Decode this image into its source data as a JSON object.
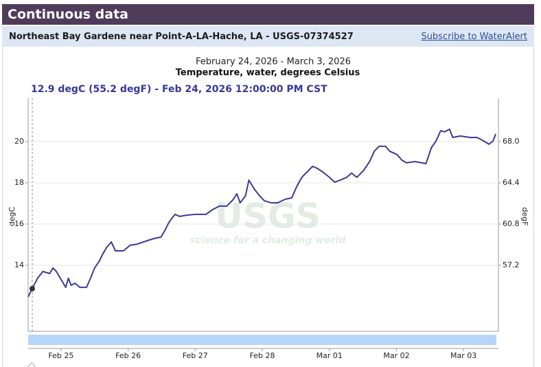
{
  "header": {
    "title": "Continuous data"
  },
  "station": {
    "name": "Northeast Bay Gardene near Point-A-LA-Hache, LA - USGS-07374527",
    "link": "Subscribe to WaterAlert"
  },
  "chart_data": {
    "type": "line",
    "subtitle": "February 24, 2026 - March 3, 2026",
    "title": "Temperature, water, degrees Celsius",
    "tooltip": "12.9 degC (55.2 degF) - Feb 24, 2026 12:00:00 PM CST",
    "watermark": {
      "logo": "USGS",
      "tagline": "science for a changing world"
    },
    "ylabel": "degC",
    "y2label": "degF",
    "x": [
      0.51,
      0.57,
      0.65,
      0.73,
      0.83,
      0.88,
      0.93,
      0.99,
      1.07,
      1.11,
      1.15,
      1.21,
      1.28,
      1.38,
      1.44,
      1.5,
      1.57,
      1.62,
      1.68,
      1.75,
      1.81,
      1.93,
      2.03,
      2.14,
      2.29,
      2.39,
      2.49,
      2.55,
      2.6,
      2.65,
      2.7,
      2.77,
      2.87,
      3.01,
      3.16,
      3.26,
      3.36,
      3.47,
      3.57,
      3.62,
      3.67,
      3.75,
      3.8,
      3.88,
      3.96,
      4.03,
      4.13,
      4.23,
      4.34,
      4.44,
      4.51,
      4.59,
      4.67,
      4.75,
      4.82,
      4.9,
      5.0,
      5.08,
      5.16,
      5.26,
      5.33,
      5.41,
      5.51,
      5.6,
      5.67,
      5.74,
      5.84,
      5.9,
      6.01,
      6.08,
      6.15,
      6.28,
      6.44,
      6.52,
      6.59,
      6.66,
      6.72,
      6.79,
      6.84,
      6.95,
      7.1,
      7.2,
      7.3,
      7.38,
      7.44,
      7.48
    ],
    "series": [
      {
        "color": "#3a3a96",
        "values": [
          12.47,
          12.87,
          13.37,
          13.7,
          13.6,
          13.87,
          13.7,
          13.37,
          12.93,
          13.37,
          13.03,
          13.13,
          12.93,
          12.93,
          13.37,
          13.87,
          14.2,
          14.53,
          14.87,
          15.13,
          14.7,
          14.7,
          14.97,
          15.03,
          15.2,
          15.3,
          15.37,
          15.7,
          16.03,
          16.27,
          16.47,
          16.37,
          16.43,
          16.47,
          16.47,
          16.7,
          16.87,
          16.87,
          17.2,
          17.47,
          17.03,
          17.37,
          18.13,
          17.7,
          17.37,
          17.13,
          17.03,
          17.03,
          17.2,
          17.27,
          17.8,
          18.27,
          18.53,
          18.8,
          18.7,
          18.53,
          18.27,
          18.03,
          18.13,
          18.27,
          18.47,
          18.27,
          18.6,
          19.03,
          19.53,
          19.77,
          19.77,
          19.53,
          19.37,
          19.1,
          18.97,
          19.03,
          18.93,
          19.7,
          20.03,
          20.53,
          20.47,
          20.6,
          20.2,
          20.27,
          20.2,
          20.2,
          20.03,
          19.87,
          20.03,
          20.37
        ]
      }
    ],
    "xlim": [
      0.51,
      7.52
    ],
    "xticks": [
      {
        "value": 1,
        "label": "Feb 25"
      },
      {
        "value": 2,
        "label": "Feb 26"
      },
      {
        "value": 3,
        "label": "Feb 27"
      },
      {
        "value": 4,
        "label": "Feb 28"
      },
      {
        "value": 5,
        "label": "Mar 01"
      },
      {
        "value": 6,
        "label": "Mar 02"
      },
      {
        "value": 7,
        "label": "Mar 03"
      }
    ],
    "ylim": [
      10.8,
      22.1
    ],
    "yticks": [
      14,
      16,
      18,
      20
    ],
    "y2lim": [
      51.44,
      71.78
    ],
    "y2ticks": [
      57.2,
      60.8,
      64.4,
      {
        "value": 68,
        "label": "68.0"
      }
    ],
    "grid": true
  }
}
